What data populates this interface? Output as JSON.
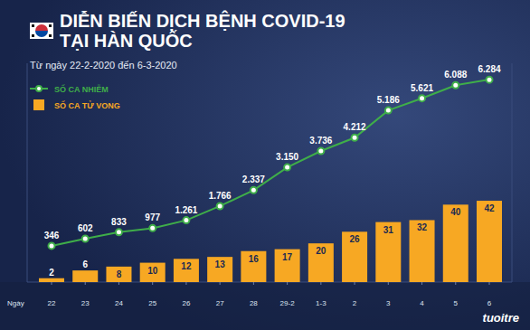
{
  "chart_data": {
    "type": "bar",
    "title": "DIỄN BIẾN DỊCH BỆNH COVID-19 TẠI HÀN QUỐC",
    "subtitle": "Từ ngày 22-2-2020 đến 6-3-2020",
    "x_label": "Ngày",
    "logo": "tuoitre",
    "categories": [
      "22",
      "23",
      "24",
      "25",
      "26",
      "27",
      "28",
      "29-2",
      "1-3",
      "2",
      "3",
      "4",
      "5",
      "6"
    ],
    "series": [
      {
        "name": "SỐ CA NHIỄM",
        "type": "line",
        "color": "#3fae49",
        "marker": "circle",
        "axis": "y2",
        "values": [
          346,
          602,
          833,
          977,
          1261,
          1766,
          2337,
          3150,
          3736,
          4212,
          5186,
          5621,
          6088,
          6284
        ],
        "value_labels": [
          "346",
          "602",
          "833",
          "977",
          "1.261",
          "1.766",
          "2.337",
          "3.150",
          "3.736",
          "4.212",
          "5.186",
          "5.621",
          "6.088",
          "6.284"
        ]
      },
      {
        "name": "SỐ CA TỬ VONG",
        "type": "bar",
        "color": "#f7a823",
        "values": [
          2,
          6,
          8,
          10,
          12,
          13,
          16,
          17,
          20,
          26,
          31,
          32,
          40,
          42
        ]
      }
    ],
    "ylim": [
      0,
      113
    ],
    "y2lim": [
      -950,
      6870
    ],
    "data_labels": true,
    "tick_labels": "x",
    "legend": "top-left",
    "grid": false
  }
}
